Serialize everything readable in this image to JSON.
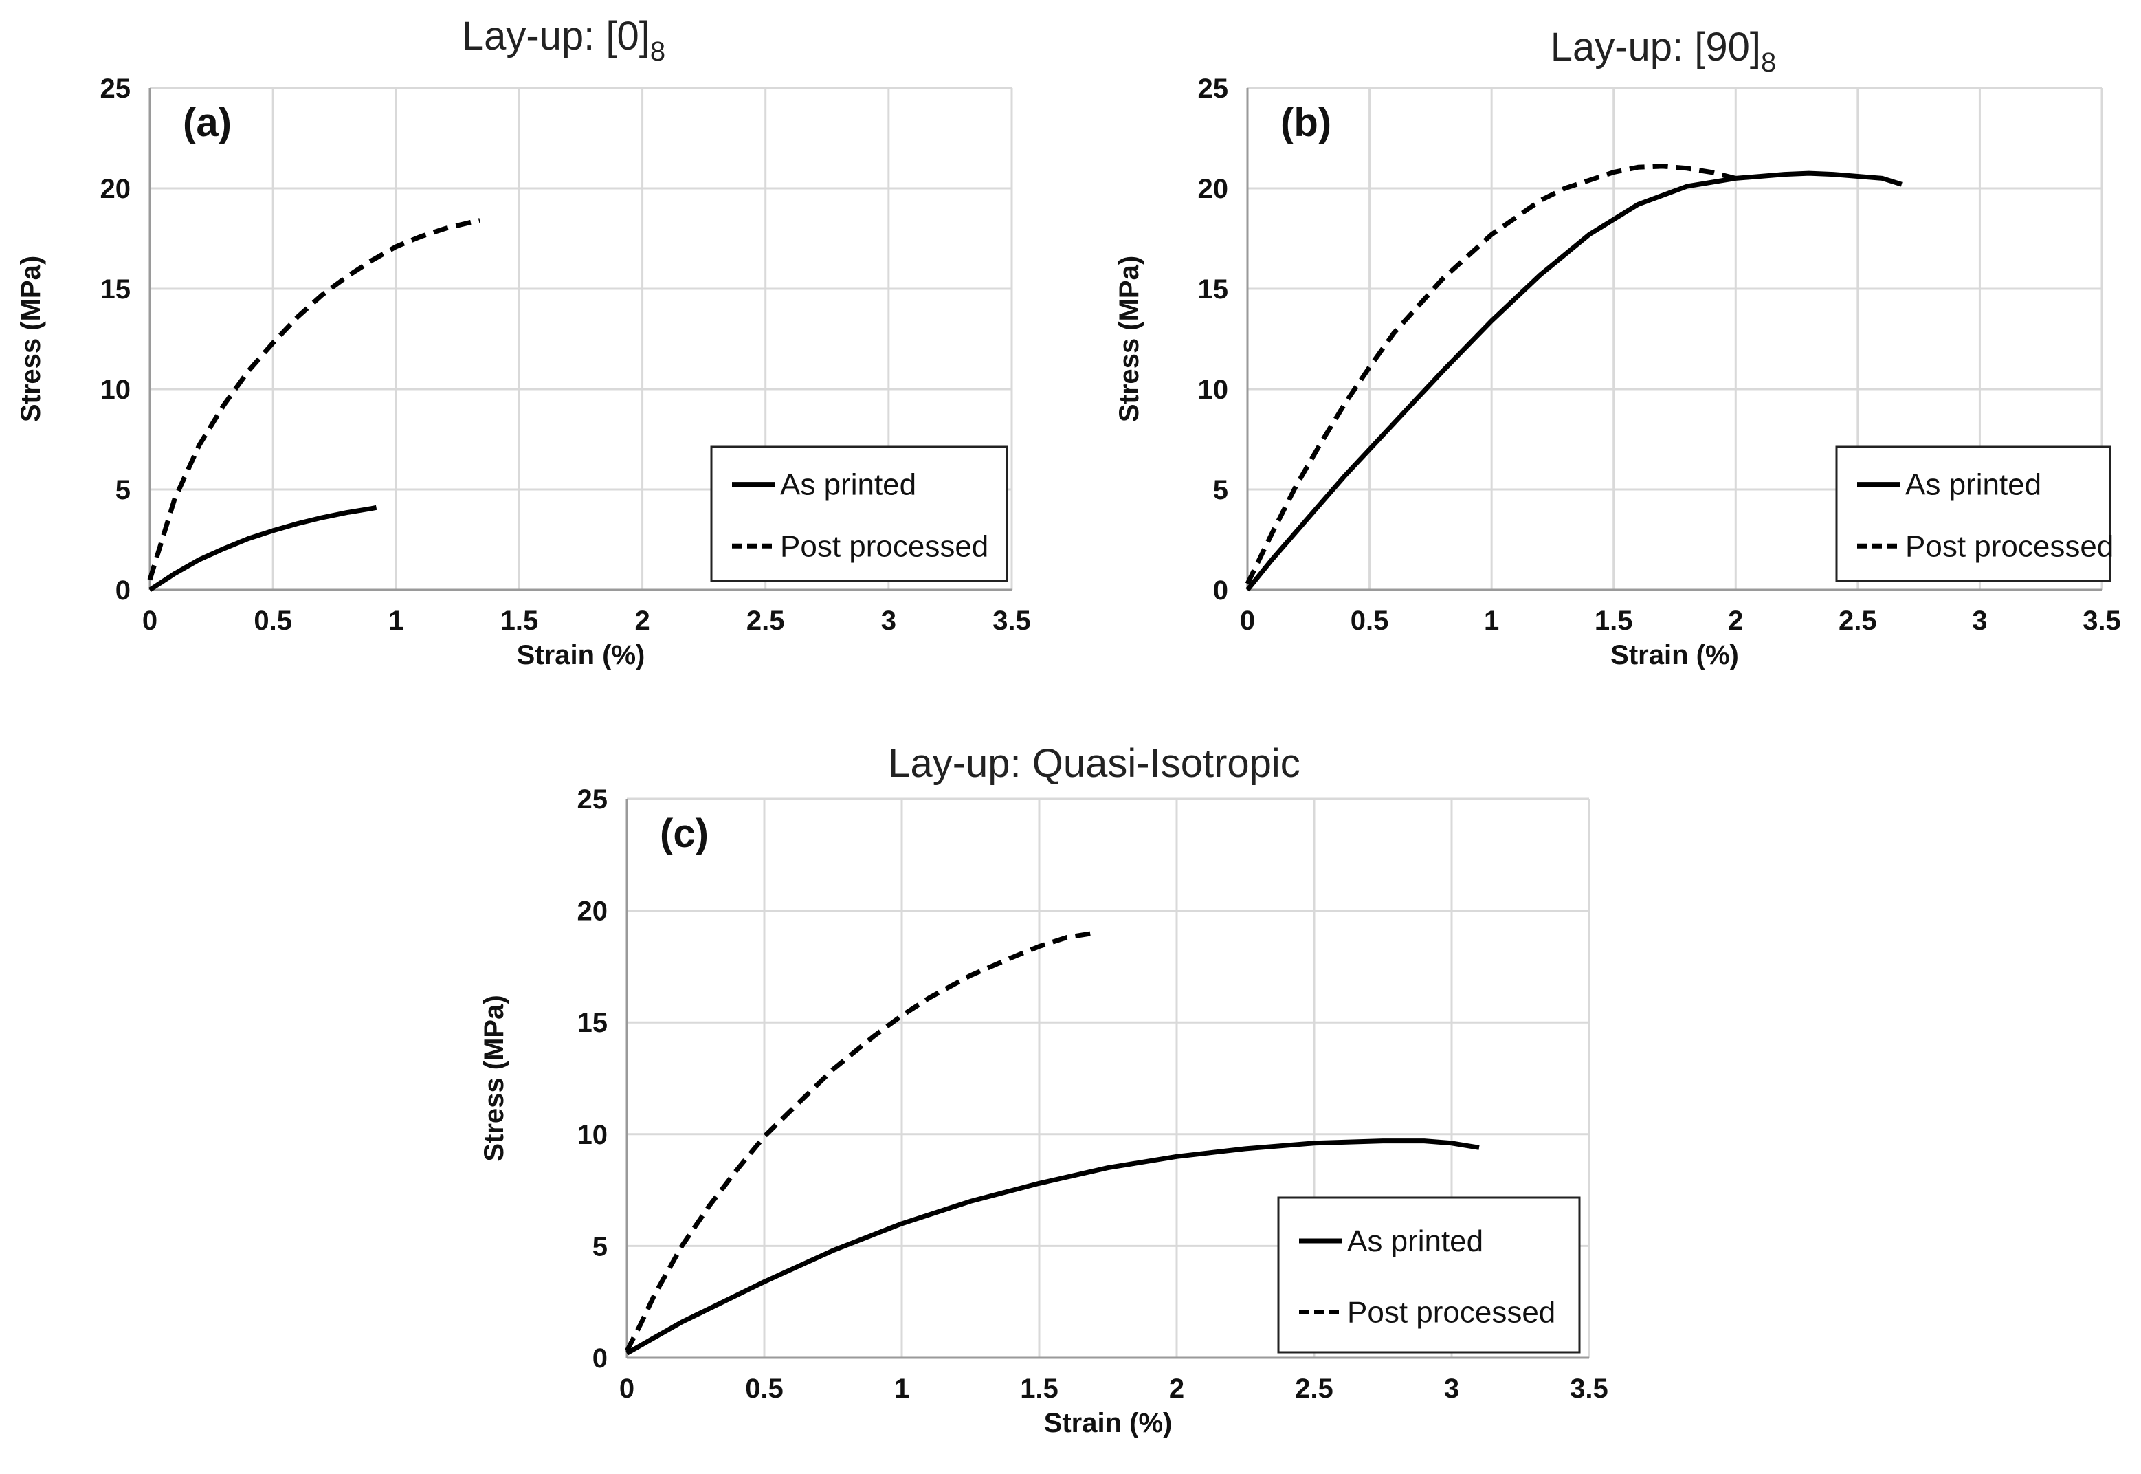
{
  "chart_data": [
    {
      "type": "line",
      "panel_label": "(a)",
      "title": "Lay-up: [0]",
      "title_subscript": "8",
      "xlabel": "Strain (%)",
      "ylabel": "Stress (MPa)",
      "xlim": [
        0,
        3.5
      ],
      "ylim": [
        0,
        25
      ],
      "xticks": [
        "0",
        "0.5",
        "1",
        "1.5",
        "2",
        "2.5",
        "3",
        "3.5"
      ],
      "yticks": [
        "0",
        "5",
        "10",
        "15",
        "20",
        "25"
      ],
      "grid": true,
      "legend": {
        "position": "lower-right",
        "entries": [
          "As printed",
          "Post processed"
        ]
      },
      "series": [
        {
          "name": "As printed",
          "style": "solid",
          "x": [
            0,
            0.05,
            0.1,
            0.2,
            0.3,
            0.4,
            0.5,
            0.6,
            0.7,
            0.8,
            0.9,
            0.92
          ],
          "y": [
            0,
            0.4,
            0.8,
            1.5,
            2.05,
            2.55,
            2.95,
            3.3,
            3.6,
            3.85,
            4.05,
            4.1
          ]
        },
        {
          "name": "Post processed",
          "style": "dashed",
          "x": [
            0,
            0.05,
            0.1,
            0.2,
            0.3,
            0.4,
            0.5,
            0.6,
            0.7,
            0.8,
            0.9,
            1.0,
            1.1,
            1.2,
            1.3,
            1.34
          ],
          "y": [
            0.5,
            2.5,
            4.5,
            7.2,
            9.2,
            10.9,
            12.3,
            13.6,
            14.7,
            15.6,
            16.4,
            17.1,
            17.6,
            18.0,
            18.3,
            18.4
          ]
        }
      ]
    },
    {
      "type": "line",
      "panel_label": "(b)",
      "title": "Lay-up: [90]",
      "title_subscript": "8",
      "xlabel": "Strain (%)",
      "ylabel": "Stress (MPa)",
      "xlim": [
        0,
        3.5
      ],
      "ylim": [
        0,
        25
      ],
      "xticks": [
        "0",
        "0.5",
        "1",
        "1.5",
        "2",
        "2.5",
        "3",
        "3.5"
      ],
      "yticks": [
        "0",
        "5",
        "10",
        "15",
        "20",
        "25"
      ],
      "grid": true,
      "legend": {
        "position": "lower-right",
        "entries": [
          "As printed",
          "Post processed"
        ]
      },
      "series": [
        {
          "name": "As printed",
          "style": "solid",
          "x": [
            0,
            0.1,
            0.2,
            0.3,
            0.4,
            0.5,
            0.6,
            0.8,
            1.0,
            1.2,
            1.4,
            1.6,
            1.8,
            2.0,
            2.2,
            2.3,
            2.4,
            2.6,
            2.68
          ],
          "y": [
            0,
            1.5,
            2.9,
            4.3,
            5.7,
            7.0,
            8.3,
            10.9,
            13.4,
            15.7,
            17.7,
            19.2,
            20.1,
            20.5,
            20.7,
            20.75,
            20.7,
            20.5,
            20.2
          ]
        },
        {
          "name": "Post processed",
          "style": "dashed",
          "x": [
            0,
            0.1,
            0.2,
            0.3,
            0.4,
            0.5,
            0.6,
            0.8,
            1.0,
            1.2,
            1.3,
            1.5,
            1.6,
            1.7,
            1.8,
            1.9,
            2.0
          ],
          "y": [
            0.3,
            2.8,
            5.2,
            7.3,
            9.3,
            11.1,
            12.8,
            15.5,
            17.7,
            19.4,
            20.0,
            20.8,
            21.05,
            21.1,
            21.0,
            20.8,
            20.5
          ]
        }
      ]
    },
    {
      "type": "line",
      "panel_label": "(c)",
      "title": "Lay-up: Quasi-Isotropic",
      "title_subscript": "",
      "xlabel": "Strain (%)",
      "ylabel": "Stress (MPa)",
      "xlim": [
        0,
        3.5
      ],
      "ylim": [
        0,
        25
      ],
      "xticks": [
        "0",
        "0.5",
        "1",
        "1.5",
        "2",
        "2.5",
        "3",
        "3.5"
      ],
      "yticks": [
        "0",
        "5",
        "10",
        "15",
        "20",
        "25"
      ],
      "grid": true,
      "legend": {
        "position": "lower-right",
        "entries": [
          "As printed",
          "Post processed"
        ]
      },
      "series": [
        {
          "name": "As printed",
          "style": "solid",
          "x": [
            0,
            0.1,
            0.2,
            0.3,
            0.5,
            0.75,
            1.0,
            1.25,
            1.5,
            1.75,
            2.0,
            2.25,
            2.5,
            2.75,
            2.9,
            3.0,
            3.1
          ],
          "y": [
            0.2,
            0.9,
            1.6,
            2.2,
            3.4,
            4.8,
            6.0,
            7.0,
            7.8,
            8.5,
            9.0,
            9.35,
            9.6,
            9.7,
            9.7,
            9.6,
            9.4
          ]
        },
        {
          "name": "Post processed",
          "style": "dashed",
          "x": [
            0,
            0.05,
            0.1,
            0.2,
            0.3,
            0.4,
            0.5,
            0.6,
            0.75,
            0.9,
            1.0,
            1.1,
            1.25,
            1.4,
            1.5,
            1.6,
            1.7
          ],
          "y": [
            0.3,
            1.5,
            2.8,
            5.0,
            6.8,
            8.4,
            9.9,
            11.1,
            12.9,
            14.4,
            15.3,
            16.1,
            17.1,
            17.9,
            18.4,
            18.8,
            19.0
          ]
        }
      ]
    }
  ]
}
